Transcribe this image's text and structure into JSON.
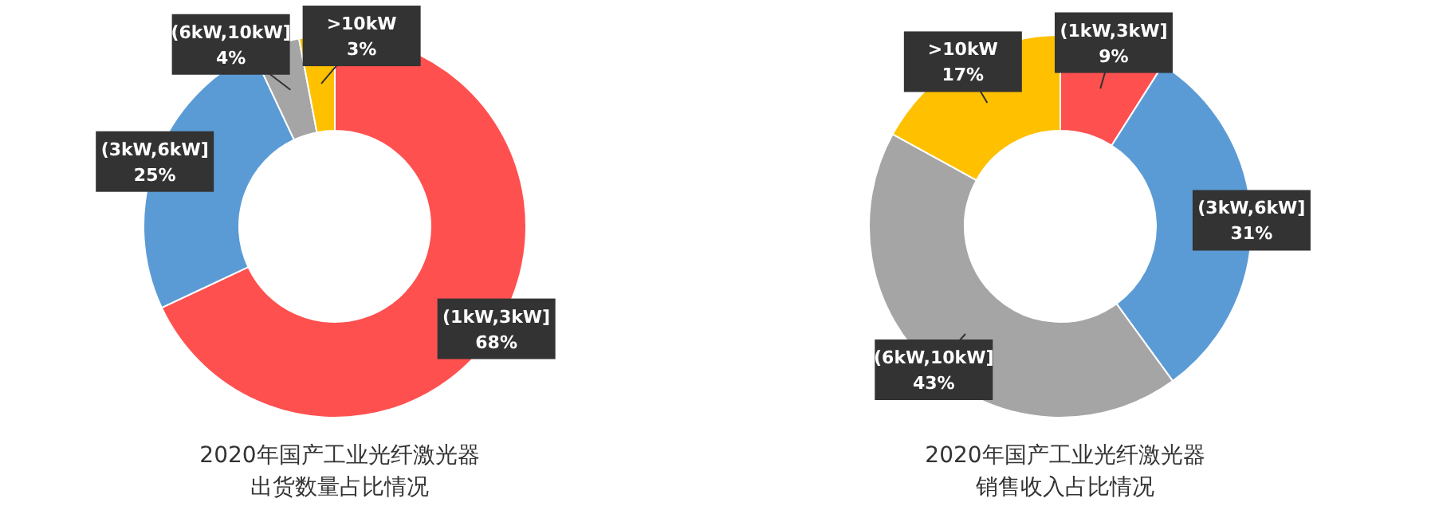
{
  "chart_data": [
    {
      "type": "donut",
      "title": "2020年国产工业光纤激光器",
      "subtitle": "出货数量占比情况",
      "categories": [
        "(1kW,3kW]",
        "(3kW,6kW]",
        "(6kW,10kW]",
        ">10kW"
      ],
      "values": [
        68,
        25,
        4,
        3
      ],
      "value_labels": [
        "68%",
        "25%",
        "4%",
        "3%"
      ],
      "colors": [
        "#ff5050",
        "#5b9bd5",
        "#a5a5a5",
        "#ffc000"
      ]
    },
    {
      "type": "donut",
      "title": "2020年国产工业光纤激光器",
      "subtitle": "销售收入占比情况",
      "categories": [
        "(1kW,3kW]",
        "(3kW,6kW]",
        "(6kW,10kW]",
        ">10kW"
      ],
      "values": [
        9,
        31,
        43,
        17
      ],
      "value_labels": [
        "9%",
        "31%",
        "43%",
        "17%"
      ],
      "colors": [
        "#ff5050",
        "#5b9bd5",
        "#a5a5a5",
        "#ffc000"
      ]
    }
  ]
}
